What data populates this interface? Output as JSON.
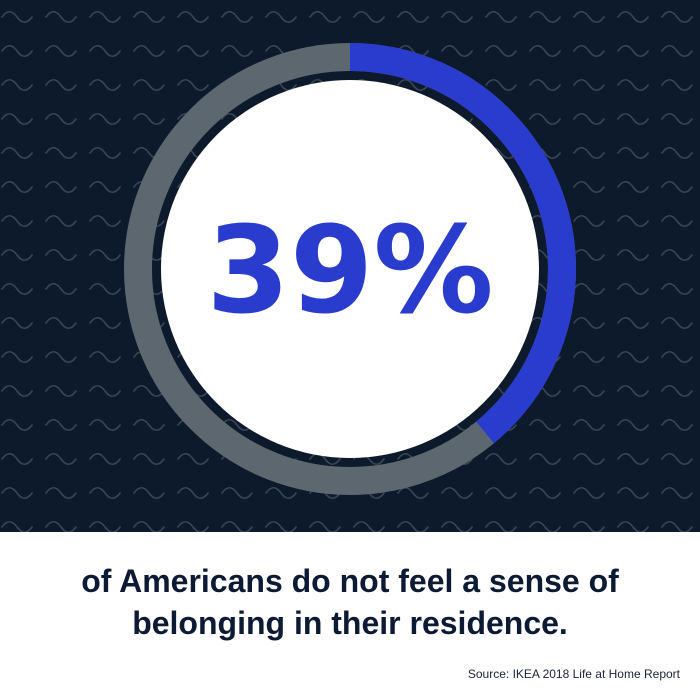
{
  "chart_data": {
    "type": "pie",
    "subtype": "donut-progress",
    "value": 39,
    "display_value": "39%",
    "max": 100,
    "colors": {
      "filled": "#2a3ccd",
      "remaining": "#5d6770",
      "background": "#0d1a2b",
      "center": "#ffffff",
      "value_text": "#2a3ccd"
    }
  },
  "caption": {
    "line1": "of Americans do not feel a sense of",
    "line2": "belonging in their residence."
  },
  "source": "Source: IKEA 2018 Life at Home Report"
}
